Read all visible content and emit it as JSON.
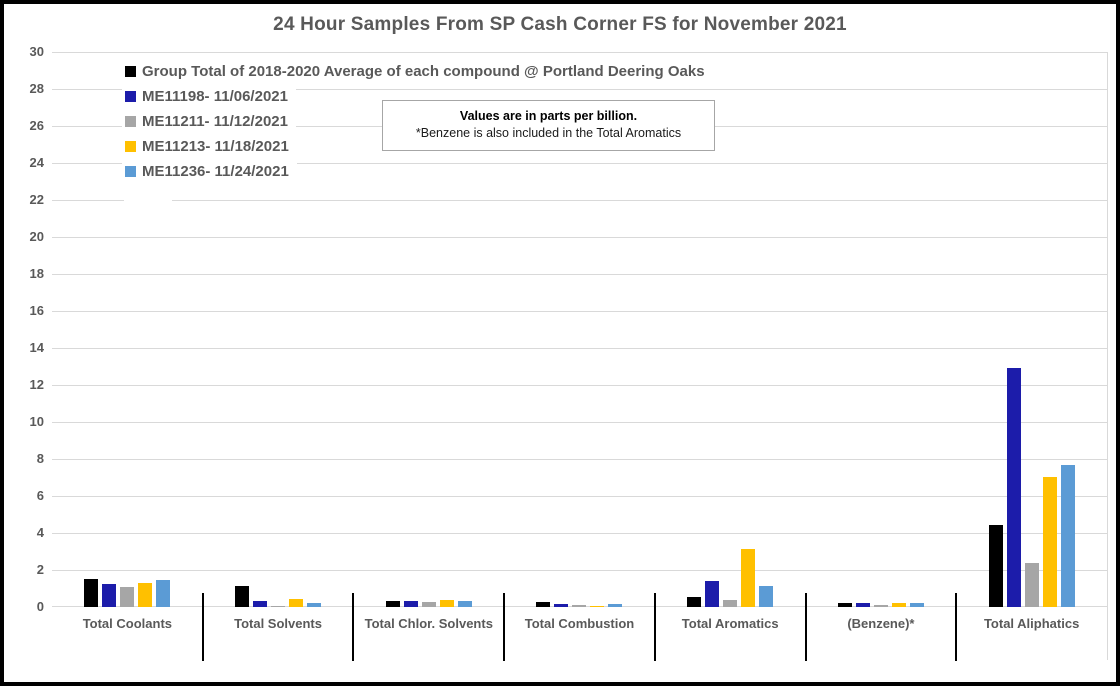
{
  "annotation": {
    "line1": "Values are in parts per billion.",
    "line2": "*Benzene is also included in the Total Aromatics"
  },
  "chart_data": {
    "type": "bar",
    "title": "24 Hour Samples From SP Cash Corner FS for November 2021",
    "unit": "parts per billion",
    "categories": [
      "Total Coolants",
      "Total Solvents",
      "Total Chlor. Solvents",
      "Total Combustion",
      "Total Aromatics",
      "(Benzene)*",
      "Total Aliphatics"
    ],
    "series": [
      {
        "name": "Group Total of 2018-2020 Average of each compound @ Portland Deering Oaks",
        "color": "#000000",
        "values": [
          1.5,
          1.15,
          0.35,
          0.25,
          0.55,
          0.2,
          4.45
        ]
      },
      {
        "name": "ME11198- 11/06/2021",
        "color": "#1C1CAA",
        "values": [
          1.25,
          0.3,
          0.3,
          0.15,
          1.4,
          0.2,
          12.9
        ]
      },
      {
        "name": "ME11211- 11/12/2021",
        "color": "#A6A6A6",
        "values": [
          1.1,
          0.08,
          0.25,
          0.1,
          0.4,
          0.1,
          2.4
        ]
      },
      {
        "name": "ME11213- 11/18/2021",
        "color": "#FFC000",
        "values": [
          1.3,
          0.45,
          0.4,
          0.08,
          3.15,
          0.2,
          7.05
        ]
      },
      {
        "name": "ME11236- 11/24/2021",
        "color": "#5B9BD5",
        "values": [
          1.45,
          0.2,
          0.3,
          0.15,
          1.15,
          0.2,
          7.65
        ]
      }
    ],
    "ylim": [
      0,
      30
    ],
    "ytick_step": 2,
    "grid": true,
    "legend_position": "top-left",
    "gridline_color": "#D9D9D9",
    "label_color": "#595959"
  }
}
